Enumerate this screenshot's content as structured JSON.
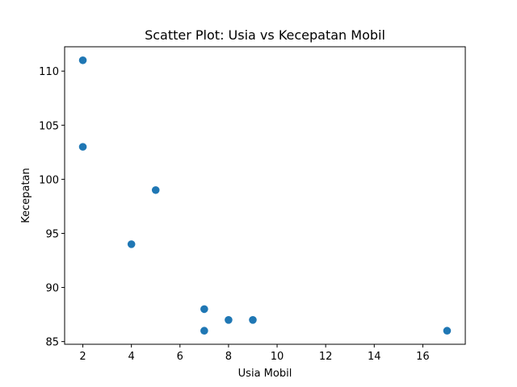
{
  "chart_data": {
    "type": "scatter",
    "title": "Scatter Plot: Usia vs Kecepatan Mobil",
    "xlabel": "Usia Mobil",
    "ylabel": "Kecepatan",
    "xlim": [
      1.25,
      17.75
    ],
    "ylim": [
      84.75,
      112.25
    ],
    "xticks": [
      2,
      4,
      6,
      8,
      10,
      12,
      14,
      16
    ],
    "yticks": [
      85,
      90,
      95,
      100,
      105,
      110
    ],
    "grid": false,
    "marker_color": "#1f77b4",
    "series": [
      {
        "points": [
          {
            "x": 2,
            "y": 111
          },
          {
            "x": 2,
            "y": 103
          },
          {
            "x": 5,
            "y": 99
          },
          {
            "x": 4,
            "y": 94
          },
          {
            "x": 7,
            "y": 88
          },
          {
            "x": 7,
            "y": 86
          },
          {
            "x": 8,
            "y": 87
          },
          {
            "x": 9,
            "y": 87
          },
          {
            "x": 17,
            "y": 86
          }
        ]
      }
    ]
  }
}
